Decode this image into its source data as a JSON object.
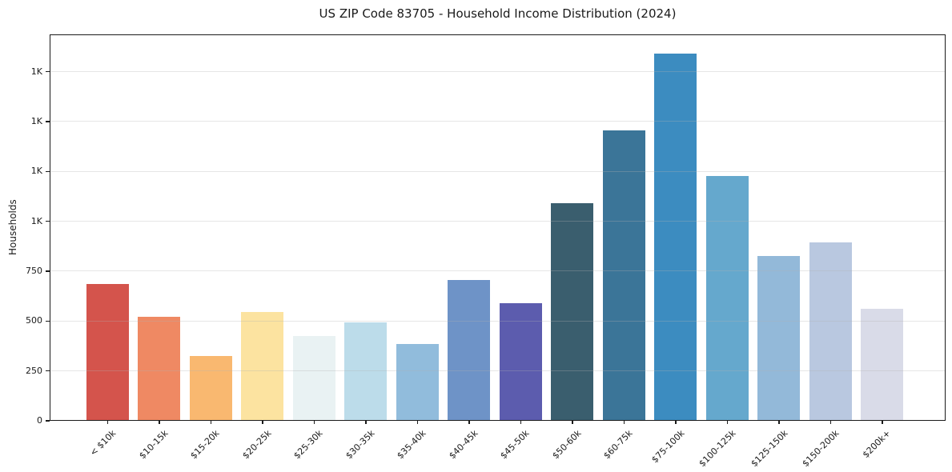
{
  "chart_data": {
    "type": "bar",
    "title": "US ZIP Code 83705 - Household Income Distribution (2024)",
    "xlabel": "",
    "ylabel": "Households",
    "categories": [
      "< $10k",
      "$10-15k",
      "$15-20k",
      "$20-25k",
      "$25-30k",
      "$30-35k",
      "$35-40k",
      "$40-45k",
      "$45-50k",
      "$50-60k",
      "$60-75k",
      "$75-100k",
      "$100-125k",
      "$125-150k",
      "$150-200k",
      "$200k+"
    ],
    "values": [
      680,
      517,
      322,
      540,
      421,
      488,
      381,
      700,
      586,
      1087,
      1453,
      1838,
      1224,
      822,
      891,
      557
    ],
    "bar_colors": [
      "#d4544c",
      "#ef8963",
      "#f9b870",
      "#fce3a0",
      "#e9f2f3",
      "#bcdcea",
      "#91bcdc",
      "#6e93c7",
      "#5c5cae",
      "#3a5e6e",
      "#3b7598",
      "#3c8cc0",
      "#65a8cd",
      "#93b9d9",
      "#b9c8e0",
      "#d9dbe8"
    ],
    "ylim": [
      0,
      1937
    ],
    "yticks": [
      {
        "value": 0,
        "label": "0"
      },
      {
        "value": 250,
        "label": "250"
      },
      {
        "value": 500,
        "label": "500"
      },
      {
        "value": 750,
        "label": "750"
      },
      {
        "value": 1000,
        "label": "1K"
      },
      {
        "value": 1250,
        "label": "1K"
      },
      {
        "value": 1500,
        "label": "1K"
      },
      {
        "value": 1750,
        "label": "1K"
      }
    ],
    "grid": "horizontal, light gray, drawn over bars",
    "legend": "none",
    "colors": {
      "background": "#ffffff",
      "spine": "#1a1a1a",
      "gridline": "#e7e7e7",
      "text": "#1a1a1a"
    }
  }
}
